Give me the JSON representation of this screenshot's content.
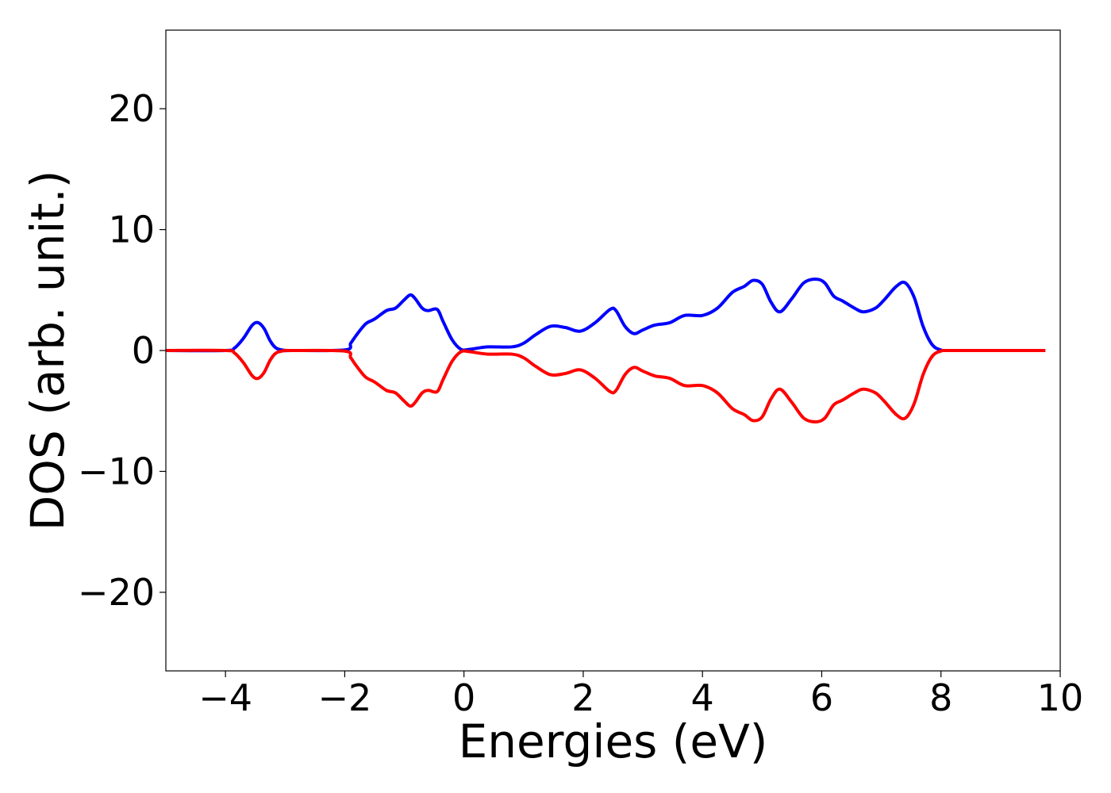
{
  "chart_data": {
    "type": "line",
    "title": "",
    "xlabel": "Energies (eV)",
    "ylabel": "DOS (arb. unit.)",
    "xlim": [
      -5,
      10
    ],
    "ylim": [
      -26.5,
      26.5
    ],
    "x_ticks": [
      -4,
      -2,
      0,
      2,
      4,
      6,
      8,
      10
    ],
    "x_tick_labels": [
      "−4",
      "−2",
      "0",
      "2",
      "4",
      "6",
      "8",
      "10"
    ],
    "y_ticks": [
      -20,
      -10,
      0,
      10,
      20
    ],
    "y_tick_labels": [
      "−20",
      "−10",
      "0",
      "10",
      "20"
    ],
    "grid": false,
    "legend": "none",
    "series": [
      {
        "color": "#0000ff",
        "x": [
          -5.0,
          -4.0,
          -3.85,
          -3.7,
          -3.55,
          -3.45,
          -3.35,
          -3.25,
          -3.15,
          -3.0,
          -2.9,
          -2.0,
          -1.9,
          -1.8,
          -1.65,
          -1.5,
          -1.3,
          -1.15,
          -1.0,
          -0.9,
          -0.82,
          -0.7,
          -0.6,
          -0.45,
          -0.35,
          -0.2,
          -0.05,
          0.1,
          0.4,
          0.8,
          1.0,
          1.2,
          1.45,
          1.7,
          1.95,
          2.2,
          2.45,
          2.55,
          2.7,
          2.85,
          3.0,
          3.2,
          3.45,
          3.7,
          4.0,
          4.25,
          4.5,
          4.7,
          4.85,
          5.0,
          5.15,
          5.3,
          5.5,
          5.7,
          5.9,
          6.05,
          6.2,
          6.35,
          6.55,
          6.7,
          6.9,
          7.05,
          7.25,
          7.4,
          7.55,
          7.7,
          7.85,
          8.0,
          8.2,
          9.75
        ],
        "values": [
          0.0,
          0.0,
          0.2,
          1.0,
          2.1,
          2.3,
          1.8,
          0.8,
          0.2,
          0.0,
          0.0,
          0.05,
          0.6,
          1.3,
          2.2,
          2.6,
          3.3,
          3.5,
          4.2,
          4.6,
          4.3,
          3.5,
          3.3,
          3.4,
          2.4,
          0.9,
          0.1,
          0.1,
          0.3,
          0.3,
          0.6,
          1.3,
          2.0,
          1.9,
          1.6,
          2.3,
          3.4,
          3.3,
          2.0,
          1.4,
          1.7,
          2.1,
          2.3,
          2.9,
          2.9,
          3.5,
          4.8,
          5.3,
          5.8,
          5.5,
          4.0,
          3.2,
          4.3,
          5.6,
          5.9,
          5.6,
          4.5,
          4.1,
          3.5,
          3.2,
          3.5,
          4.2,
          5.3,
          5.6,
          4.4,
          2.0,
          0.5,
          0.05,
          0.0,
          0.0
        ]
      },
      {
        "color": "#ff0000",
        "x": [
          -5.0,
          -4.0,
          -3.85,
          -3.7,
          -3.55,
          -3.45,
          -3.35,
          -3.25,
          -3.15,
          -3.0,
          -2.9,
          -2.0,
          -1.9,
          -1.8,
          -1.65,
          -1.5,
          -1.3,
          -1.15,
          -1.0,
          -0.9,
          -0.82,
          -0.7,
          -0.6,
          -0.45,
          -0.35,
          -0.2,
          -0.05,
          0.1,
          0.4,
          0.8,
          1.0,
          1.2,
          1.45,
          1.7,
          1.95,
          2.2,
          2.45,
          2.55,
          2.7,
          2.85,
          3.0,
          3.2,
          3.45,
          3.7,
          4.0,
          4.25,
          4.5,
          4.7,
          4.85,
          5.0,
          5.15,
          5.3,
          5.5,
          5.7,
          5.9,
          6.05,
          6.2,
          6.35,
          6.55,
          6.7,
          6.9,
          7.05,
          7.25,
          7.4,
          7.55,
          7.7,
          7.85,
          8.0,
          8.2,
          9.75
        ],
        "values": [
          0.0,
          0.0,
          -0.2,
          -1.0,
          -2.1,
          -2.3,
          -1.8,
          -0.8,
          -0.2,
          0.0,
          0.0,
          -0.05,
          -0.6,
          -1.3,
          -2.2,
          -2.6,
          -3.3,
          -3.5,
          -4.2,
          -4.6,
          -4.3,
          -3.5,
          -3.3,
          -3.4,
          -2.4,
          -0.9,
          -0.1,
          -0.1,
          -0.3,
          -0.3,
          -0.6,
          -1.3,
          -2.0,
          -1.9,
          -1.6,
          -2.3,
          -3.4,
          -3.3,
          -2.0,
          -1.4,
          -1.7,
          -2.1,
          -2.3,
          -2.9,
          -2.9,
          -3.5,
          -4.8,
          -5.3,
          -5.8,
          -5.5,
          -4.0,
          -3.2,
          -4.3,
          -5.6,
          -5.9,
          -5.6,
          -4.5,
          -4.1,
          -3.5,
          -3.2,
          -3.5,
          -4.2,
          -5.3,
          -5.6,
          -4.4,
          -2.0,
          -0.5,
          -0.05,
          0.0,
          0.0
        ]
      }
    ]
  }
}
